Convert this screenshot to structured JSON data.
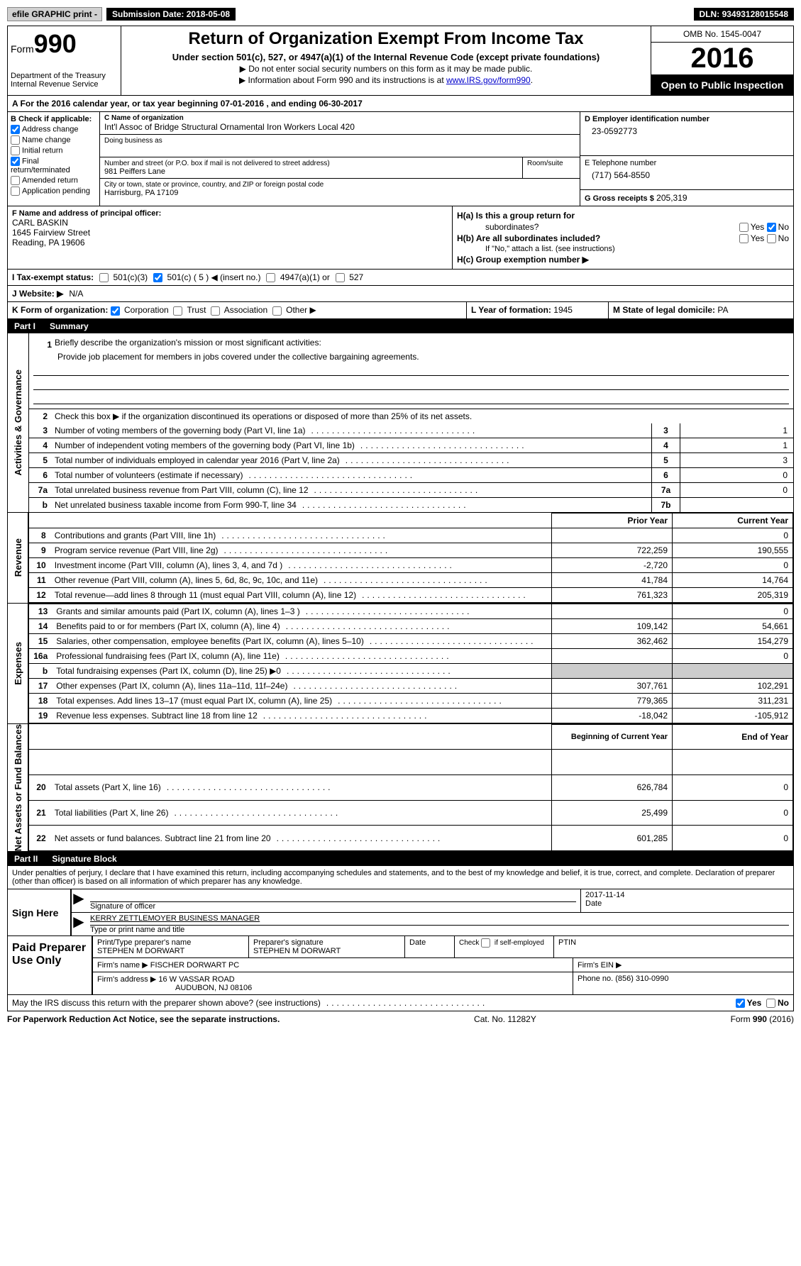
{
  "topbar": {
    "efile": "efile GRAPHIC print -",
    "sub_label": "Submission Date:",
    "sub_date": "2018-05-08",
    "dln_label": "DLN:",
    "dln": "93493128015548"
  },
  "header": {
    "form_word": "Form",
    "form_num": "990",
    "dept1": "Department of the Treasury",
    "dept2": "Internal Revenue Service",
    "title": "Return of Organization Exempt From Income Tax",
    "sub": "Under section 501(c), 527, or 4947(a)(1) of the Internal Revenue Code (except private foundations)",
    "note1": "▶ Do not enter social security numbers on this form as it may be made public.",
    "note2_pre": "▶ Information about Form 990 and its instructions is at ",
    "note2_link": "www.IRS.gov/form990",
    "note2_post": ".",
    "omb": "OMB No. 1545-0047",
    "year": "2016",
    "inspect": "Open to Public Inspection"
  },
  "secA": "A  For the 2016 calendar year, or tax year beginning 07-01-2016   , and ending 06-30-2017",
  "boxB": {
    "head": "B Check if applicable:",
    "items": [
      {
        "label": "Address change",
        "checked": true
      },
      {
        "label": "Name change",
        "checked": false
      },
      {
        "label": "Initial return",
        "checked": false
      },
      {
        "label": "Final return/terminated",
        "checked": true
      },
      {
        "label": "Amended return",
        "checked": false
      },
      {
        "label": "Application pending",
        "checked": false
      }
    ]
  },
  "boxC": {
    "name_label": "C Name of organization",
    "name": "Int'l Assoc of Bridge Structural Ornamental Iron Workers Local 420",
    "dba_label": "Doing business as",
    "dba": "",
    "addr_label": "Number and street (or P.O. box if mail is not delivered to street address)",
    "addr": "981 Peiffers Lane",
    "room_label": "Room/suite",
    "room": "",
    "city_label": "City or town, state or province, country, and ZIP or foreign postal code",
    "city": "Harrisburg, PA  17109"
  },
  "boxD": {
    "ein_label": "D Employer identification number",
    "ein": "23-0592773",
    "tel_label": "E Telephone number",
    "tel": "(717) 564-8550",
    "gross_label": "G Gross receipts $",
    "gross": "205,319"
  },
  "boxF": {
    "label": "F Name and address of principal officer:",
    "name": "CARL BASKIN",
    "addr1": "1645 Fairview Street",
    "addr2": "Reading, PA  19606"
  },
  "boxH": {
    "ha": "H(a)  Is this a group return for",
    "ha2": "subordinates?",
    "hb": "H(b)  Are all subordinates included?",
    "hb_note": "If \"No,\" attach a list. (see instructions)",
    "hc": "H(c)  Group exemption number ▶",
    "yes": "Yes",
    "no": "No"
  },
  "rowI": {
    "label": "I  Tax-exempt status:",
    "opts": [
      "501(c)(3)",
      "501(c) ( 5 ) ◀ (insert no.)",
      "4947(a)(1) or",
      "527"
    ]
  },
  "rowJ": {
    "label": "J  Website: ▶",
    "val": "N/A"
  },
  "rowK": {
    "label": "K Form of organization:",
    "opts": [
      "Corporation",
      "Trust",
      "Association",
      "Other ▶"
    ]
  },
  "rowL": {
    "label": "L Year of formation:",
    "val": "1945"
  },
  "rowM": {
    "label": "M State of legal domicile:",
    "val": "PA"
  },
  "part1": {
    "num": "Part I",
    "title": "Summary",
    "side_gov": "Activities & Governance",
    "side_rev": "Revenue",
    "side_exp": "Expenses",
    "side_net": "Net Assets or Fund Balances",
    "l1_label": "Briefly describe the organization's mission or most significant activities:",
    "l1_text": "Provide job placement for members in jobs covered under the collective bargaining agreements.",
    "l2": "Check this box ▶        if the organization discontinued its operations or disposed of more than 25% of its net assets.",
    "rows_gov": [
      {
        "n": "3",
        "t": "Number of voting members of the governing body (Part VI, line 1a)",
        "box": "3",
        "v": "1"
      },
      {
        "n": "4",
        "t": "Number of independent voting members of the governing body (Part VI, line 1b)",
        "box": "4",
        "v": "1"
      },
      {
        "n": "5",
        "t": "Total number of individuals employed in calendar year 2016 (Part V, line 2a)",
        "box": "5",
        "v": "3"
      },
      {
        "n": "6",
        "t": "Total number of volunteers (estimate if necessary)",
        "box": "6",
        "v": "0"
      },
      {
        "n": "7a",
        "t": "Total unrelated business revenue from Part VIII, column (C), line 12",
        "box": "7a",
        "v": "0"
      },
      {
        "n": "b",
        "t": "Net unrelated business taxable income from Form 990-T, line 34",
        "box": "7b",
        "v": ""
      }
    ],
    "hdr_prior": "Prior Year",
    "hdr_curr": "Current Year",
    "rows_rev": [
      {
        "n": "8",
        "t": "Contributions and grants (Part VIII, line 1h)",
        "p": "",
        "c": "0"
      },
      {
        "n": "9",
        "t": "Program service revenue (Part VIII, line 2g)",
        "p": "722,259",
        "c": "190,555"
      },
      {
        "n": "10",
        "t": "Investment income (Part VIII, column (A), lines 3, 4, and 7d )",
        "p": "-2,720",
        "c": "0"
      },
      {
        "n": "11",
        "t": "Other revenue (Part VIII, column (A), lines 5, 6d, 8c, 9c, 10c, and 11e)",
        "p": "41,784",
        "c": "14,764"
      },
      {
        "n": "12",
        "t": "Total revenue—add lines 8 through 11 (must equal Part VIII, column (A), line 12)",
        "p": "761,323",
        "c": "205,319"
      }
    ],
    "rows_exp": [
      {
        "n": "13",
        "t": "Grants and similar amounts paid (Part IX, column (A), lines 1–3 )",
        "p": "",
        "c": "0"
      },
      {
        "n": "14",
        "t": "Benefits paid to or for members (Part IX, column (A), line 4)",
        "p": "109,142",
        "c": "54,661"
      },
      {
        "n": "15",
        "t": "Salaries, other compensation, employee benefits (Part IX, column (A), lines 5–10)",
        "p": "362,462",
        "c": "154,279"
      },
      {
        "n": "16a",
        "t": "Professional fundraising fees (Part IX, column (A), line 11e)",
        "p": "",
        "c": "0"
      },
      {
        "n": "b",
        "t": "Total fundraising expenses (Part IX, column (D), line 25) ▶0",
        "p": "SHADE",
        "c": "SHADE"
      },
      {
        "n": "17",
        "t": "Other expenses (Part IX, column (A), lines 11a–11d, 11f–24e)",
        "p": "307,761",
        "c": "102,291"
      },
      {
        "n": "18",
        "t": "Total expenses. Add lines 13–17 (must equal Part IX, column (A), line 25)",
        "p": "779,365",
        "c": "311,231"
      },
      {
        "n": "19",
        "t": "Revenue less expenses. Subtract line 18 from line 12",
        "p": "-18,042",
        "c": "-105,912"
      }
    ],
    "hdr_beg": "Beginning of Current Year",
    "hdr_end": "End of Year",
    "rows_net": [
      {
        "n": "20",
        "t": "Total assets (Part X, line 16)",
        "p": "626,784",
        "c": "0"
      },
      {
        "n": "21",
        "t": "Total liabilities (Part X, line 26)",
        "p": "25,499",
        "c": "0"
      },
      {
        "n": "22",
        "t": "Net assets or fund balances. Subtract line 21 from line 20",
        "p": "601,285",
        "c": "0"
      }
    ]
  },
  "part2": {
    "num": "Part II",
    "title": "Signature Block",
    "penalties": "Under penalties of perjury, I declare that I have examined this return, including accompanying schedules and statements, and to the best of my knowledge and belief, it is true, correct, and complete. Declaration of preparer (other than officer) is based on all information of which preparer has any knowledge.",
    "sign_here": "Sign Here",
    "sig_officer": "Signature of officer",
    "sig_date": "2017-11-14",
    "date_label": "Date",
    "sig_name": "KERRY ZETTLEMOYER  BUSINESS MANAGER",
    "sig_name_label": "Type or print name and title",
    "paid": "Paid Preparer Use Only",
    "prep_name_label": "Print/Type preparer's name",
    "prep_name": "STEPHEN M DORWART",
    "prep_sig_label": "Preparer's signature",
    "prep_sig": "STEPHEN M DORWART",
    "prep_date_label": "Date",
    "prep_check": "Check         if self-employed",
    "ptin_label": "PTIN",
    "firm_name_label": "Firm's name      ▶",
    "firm_name": "FISCHER DORWART PC",
    "firm_ein_label": "Firm's EIN ▶",
    "firm_addr_label": "Firm's address ▶",
    "firm_addr": "16 W VASSAR ROAD",
    "firm_addr2": "AUDUBON, NJ  08106",
    "firm_phone_label": "Phone no.",
    "firm_phone": "(856) 310-0990",
    "discuss": "May the IRS discuss this return with the preparer shown above? (see instructions)",
    "yes": "Yes",
    "no": "No"
  },
  "footer": {
    "left": "For Paperwork Reduction Act Notice, see the separate instructions.",
    "mid": "Cat. No. 11282Y",
    "right_pre": "Form ",
    "right_bold": "990",
    "right_post": " (2016)"
  }
}
